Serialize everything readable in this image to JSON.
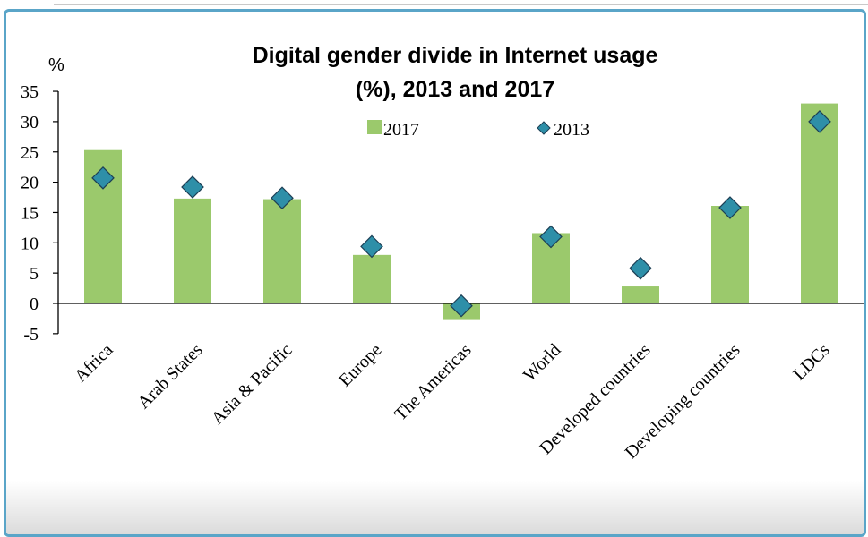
{
  "chart_data": {
    "type": "bar",
    "title_line1": "Digital gender divide in Internet usage",
    "title_line2": "(%), 2013 and 2017",
    "ylabel": "%",
    "ylim": [
      -5,
      35
    ],
    "yticks": [
      35,
      30,
      25,
      20,
      15,
      10,
      5,
      0,
      -5
    ],
    "categories": [
      "Africa",
      "Arab States",
      "Asia & Pacific",
      "Europe",
      "The Americas",
      "World",
      "Developed countries",
      "Developing countries",
      "LDCs"
    ],
    "series": [
      {
        "name": "2017",
        "kind": "bar",
        "color": "#9bc96c",
        "values": [
          25.3,
          17.3,
          17.2,
          8.0,
          -2.6,
          11.6,
          2.8,
          16.1,
          33.0
        ]
      },
      {
        "name": "2013",
        "kind": "marker",
        "shape": "diamond",
        "color": "#2e8fa8",
        "values": [
          20.7,
          19.2,
          17.4,
          9.4,
          -0.4,
          11.0,
          5.8,
          15.8,
          30.0
        ]
      }
    ],
    "legend_position": "top"
  }
}
